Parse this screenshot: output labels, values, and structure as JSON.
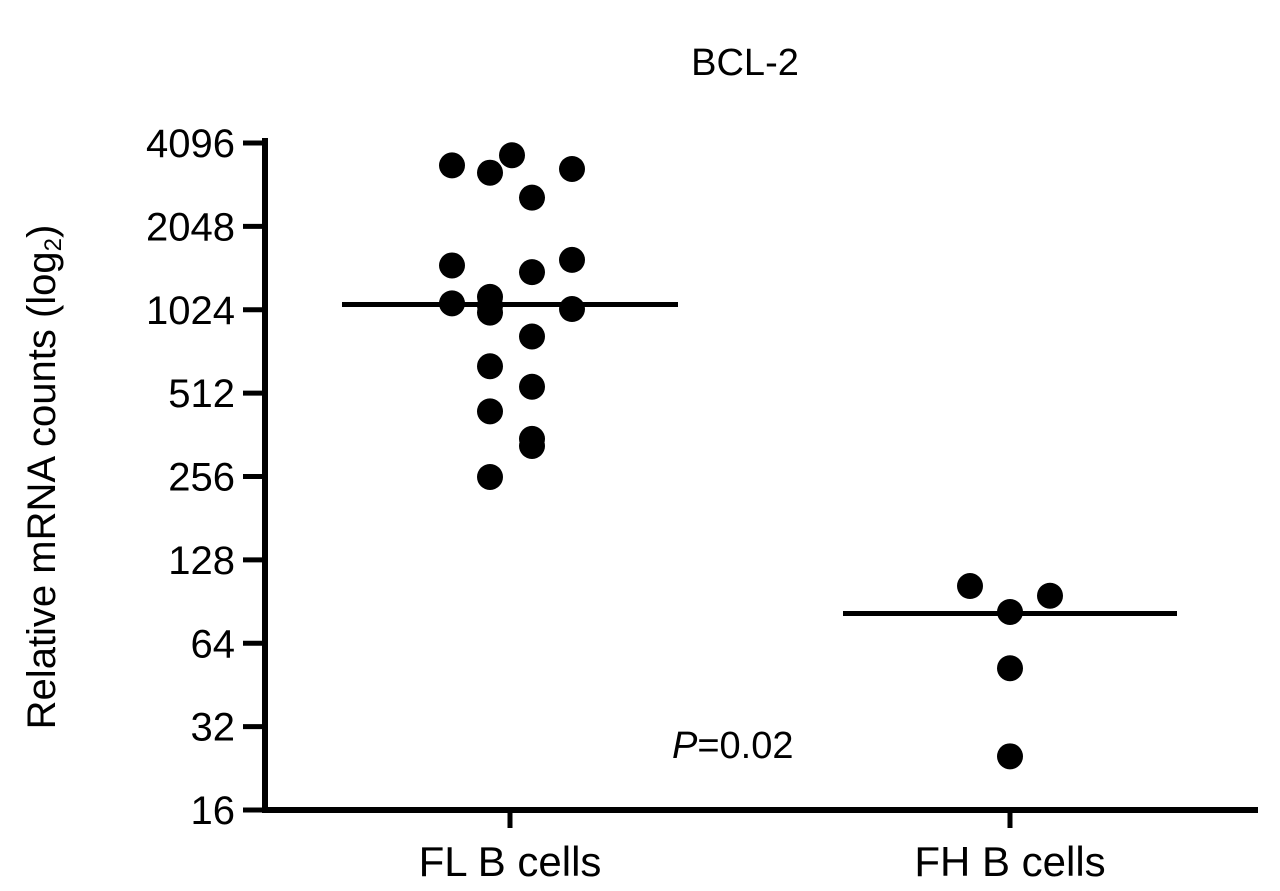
{
  "chart_data": {
    "type": "scatter",
    "title": "BCL-2",
    "ylabel": "Relative mRNA counts (log",
    "ylabel_sub": "2",
    "ylabel_close": ")",
    "yscale": "log2",
    "ylim": [
      16,
      4096
    ],
    "yticks": [
      16,
      32,
      64,
      128,
      256,
      512,
      1024,
      2048,
      4096
    ],
    "categories": [
      "FL B cells",
      "FH B cells"
    ],
    "groups": [
      {
        "category": "FL B cells",
        "median": 1070,
        "points": [
          3400,
          3700,
          3200,
          2600,
          3300,
          1480,
          1400,
          1550,
          1140,
          1080,
          1030,
          1000,
          1060,
          820,
          640,
          540,
          440,
          350,
          330,
          255
        ]
      },
      {
        "category": "FH B cells",
        "median": 82,
        "points": [
          103,
          95,
          83,
          52,
          25
        ]
      }
    ],
    "annotation": {
      "italic": "P",
      "rest": "=0.02"
    },
    "grid": false,
    "legend": "none"
  }
}
